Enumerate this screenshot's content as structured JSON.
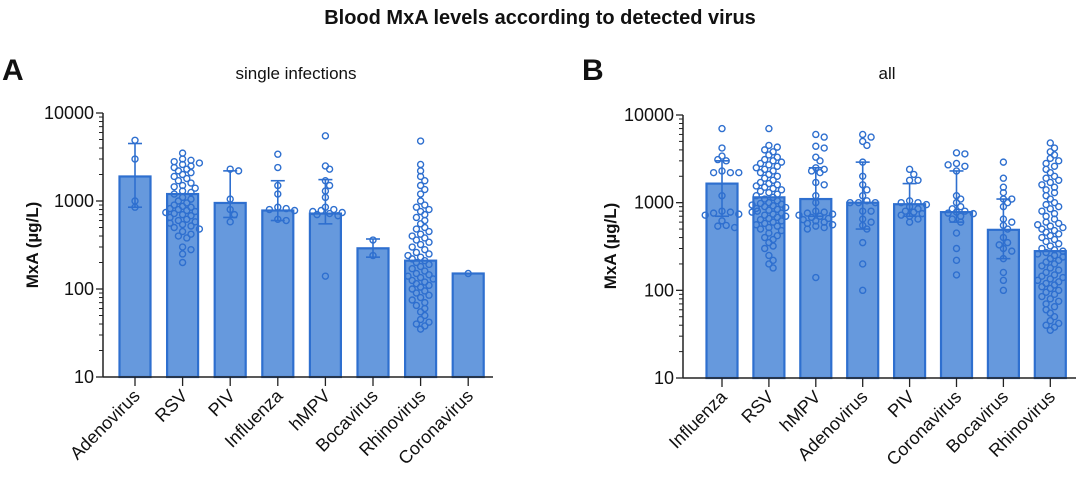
{
  "figure": {
    "title": "Blood MxA levels according to detected virus",
    "bar_fill": "#6699dd",
    "bar_stroke": "#2e6fcf",
    "point_stroke": "#2e6fcf"
  },
  "chart_data": [
    {
      "type": "bar",
      "panel": "A",
      "title": "single infections",
      "xlabel": "",
      "ylabel": "MxA (µg/L)",
      "yscale": "log",
      "ylim": [
        10,
        10000
      ],
      "yticks": [
        10,
        100,
        1000,
        10000
      ],
      "ytick_labels": [
        "10",
        "100",
        "1000",
        "10000"
      ],
      "grid": false,
      "categories": [
        "Adenovirus",
        "RSV",
        "PIV",
        "Influenza",
        "hMPV",
        "Bocavirus",
        "Rhinovirus",
        "Coronavirus"
      ],
      "values": [
        1900,
        1200,
        950,
        780,
        720,
        290,
        210,
        150
      ],
      "error_upper": [
        4500,
        null,
        2200,
        1700,
        1750,
        370,
        null,
        null
      ],
      "error_lower": [
        850,
        null,
        650,
        600,
        550,
        230,
        null,
        null
      ],
      "points": [
        [
          4900,
          3000,
          1000,
          850
        ],
        [
          3500,
          3000,
          2900,
          2800,
          2700,
          2600,
          2500,
          2400,
          2300,
          2200,
          2100,
          2000,
          1900,
          1800,
          1700,
          1600,
          1500,
          1450,
          1400,
          1300,
          1250,
          1200,
          1100,
          1050,
          1000,
          950,
          900,
          870,
          850,
          820,
          800,
          780,
          760,
          740,
          720,
          700,
          680,
          650,
          620,
          600,
          580,
          560,
          540,
          520,
          500,
          480,
          450,
          420,
          400,
          380,
          300,
          280,
          250,
          200
        ],
        [
          2300,
          2200,
          1050,
          800,
          700,
          580
        ],
        [
          3400,
          2400,
          1500,
          1200,
          850,
          820,
          800,
          780,
          620,
          600
        ],
        [
          5500,
          2500,
          2300,
          1700,
          1500,
          1300,
          1100,
          850,
          800,
          780,
          760,
          740,
          720,
          700,
          680,
          140
        ],
        [
          360,
          240
        ],
        [
          4800,
          2600,
          2200,
          1900,
          1700,
          1500,
          1350,
          1200,
          1000,
          900,
          850,
          800,
          760,
          700,
          650,
          600,
          550,
          500,
          480,
          450,
          420,
          400,
          380,
          360,
          340,
          320,
          300,
          280,
          260,
          250,
          240,
          230,
          220,
          210,
          200,
          190,
          180,
          170,
          160,
          150,
          145,
          140,
          135,
          130,
          125,
          120,
          115,
          110,
          105,
          100,
          95,
          90,
          85,
          80,
          75,
          70,
          65,
          60,
          55,
          50,
          45,
          42,
          40,
          38,
          35
        ],
        [
          150
        ]
      ]
    },
    {
      "type": "bar",
      "panel": "B",
      "title": "all",
      "xlabel": "",
      "ylabel": "MxA (µg/L)",
      "yscale": "log",
      "ylim": [
        10,
        10000
      ],
      "yticks": [
        10,
        100,
        1000,
        10000
      ],
      "ytick_labels": [
        "10",
        "100",
        "1000",
        "10000"
      ],
      "grid": false,
      "categories": [
        "Influenza",
        "RSV",
        "hMPV",
        "Adenovirus",
        "PIV",
        "Coronavirus",
        "Bocavirus",
        "Rhinovirus"
      ],
      "values": [
        1650,
        1150,
        1100,
        1000,
        960,
        780,
        490,
        280
      ],
      "error_upper": [
        3000,
        null,
        2500,
        2900,
        1650,
        2300,
        1100,
        null
      ],
      "error_lower": [
        700,
        null,
        700,
        500,
        700,
        600,
        230,
        null
      ],
      "points": [
        [
          7000,
          4200,
          3400,
          3000,
          3100,
          2300,
          2200,
          2200,
          2200,
          1200,
          800,
          780,
          760,
          740,
          720,
          620,
          550,
          540,
          520
        ],
        [
          7000,
          4500,
          4300,
          4000,
          3800,
          3500,
          3300,
          3100,
          3000,
          2900,
          2800,
          2700,
          2600,
          2500,
          2400,
          2300,
          2200,
          2100,
          2000,
          1900,
          1800,
          1700,
          1650,
          1600,
          1550,
          1500,
          1450,
          1400,
          1350,
          1300,
          1250,
          1200,
          1150,
          1100,
          1050,
          1000,
          980,
          960,
          940,
          920,
          900,
          880,
          860,
          840,
          820,
          800,
          780,
          760,
          740,
          720,
          700,
          680,
          660,
          640,
          620,
          600,
          580,
          560,
          540,
          520,
          500,
          480,
          450,
          420,
          400,
          380,
          350,
          320,
          300,
          250,
          220,
          200,
          180
        ],
        [
          6000,
          5600,
          4400,
          4200,
          3300,
          3000,
          2500,
          2400,
          2300,
          2200,
          1700,
          1600,
          1200,
          1000,
          800,
          780,
          760,
          740,
          720,
          700,
          680,
          660,
          640,
          620,
          600,
          580,
          560,
          540,
          520,
          500,
          140
        ],
        [
          6000,
          5600,
          5000,
          4500,
          2900,
          2000,
          1600,
          1400,
          1200,
          1050,
          1000,
          1000,
          1000,
          800,
          800,
          650,
          600,
          550,
          500,
          350,
          200,
          100
        ],
        [
          2400,
          2100,
          1800,
          1800,
          1050,
          1000,
          1000,
          950,
          900,
          850,
          800,
          780,
          750,
          720,
          700,
          650,
          600
        ],
        [
          3700,
          3600,
          2800,
          2600,
          2700,
          2300,
          1200,
          1100,
          1000,
          900,
          850,
          800,
          780,
          760,
          750,
          700,
          650,
          600,
          450,
          300,
          220,
          150
        ],
        [
          2900,
          1900,
          1500,
          1300,
          1100,
          1100,
          1000,
          900,
          650,
          600,
          550,
          500,
          400,
          350,
          330,
          300,
          280,
          230,
          160,
          130,
          100
        ],
        [
          4800,
          4200,
          3800,
          3500,
          3200,
          3000,
          2800,
          2600,
          2400,
          2200,
          2000,
          1900,
          1800,
          1700,
          1600,
          1500,
          1400,
          1300,
          1200,
          1100,
          1000,
          950,
          900,
          850,
          800,
          750,
          700,
          650,
          600,
          580,
          560,
          540,
          520,
          500,
          480,
          460,
          440,
          420,
          400,
          380,
          360,
          340,
          320,
          300,
          290,
          280,
          270,
          260,
          250,
          240,
          230,
          220,
          210,
          200,
          190,
          180,
          170,
          160,
          150,
          145,
          140,
          135,
          130,
          125,
          120,
          115,
          110,
          105,
          100,
          95,
          90,
          85,
          80,
          75,
          70,
          65,
          60,
          55,
          50,
          45,
          42,
          40,
          38,
          35
        ]
      ]
    }
  ]
}
